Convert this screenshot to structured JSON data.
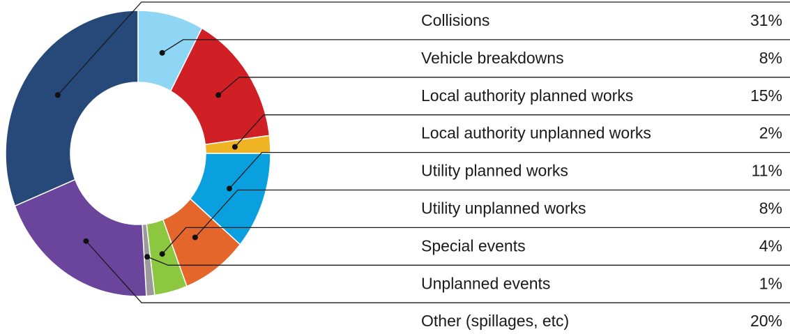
{
  "chart_data": {
    "type": "donut",
    "categories": [
      "Collisions",
      "Vehicle breakdowns",
      "Local authority planned works",
      "Local authority unplanned works",
      "Utility planned works",
      "Utility unplanned works",
      "Special events",
      "Unplanned events",
      "Other (spillages, etc)"
    ],
    "values": [
      31,
      8,
      15,
      2,
      11,
      8,
      4,
      1,
      20
    ],
    "value_labels": [
      "31%",
      "8%",
      "15%",
      "2%",
      "11%",
      "8%",
      "4%",
      "1%",
      "20%"
    ],
    "colors": [
      "#26497a",
      "#8fd6f5",
      "#d11f26",
      "#f0b323",
      "#0aa0e0",
      "#e5662a",
      "#8dc63f",
      "#9a9a9a",
      "#6b449c"
    ]
  }
}
